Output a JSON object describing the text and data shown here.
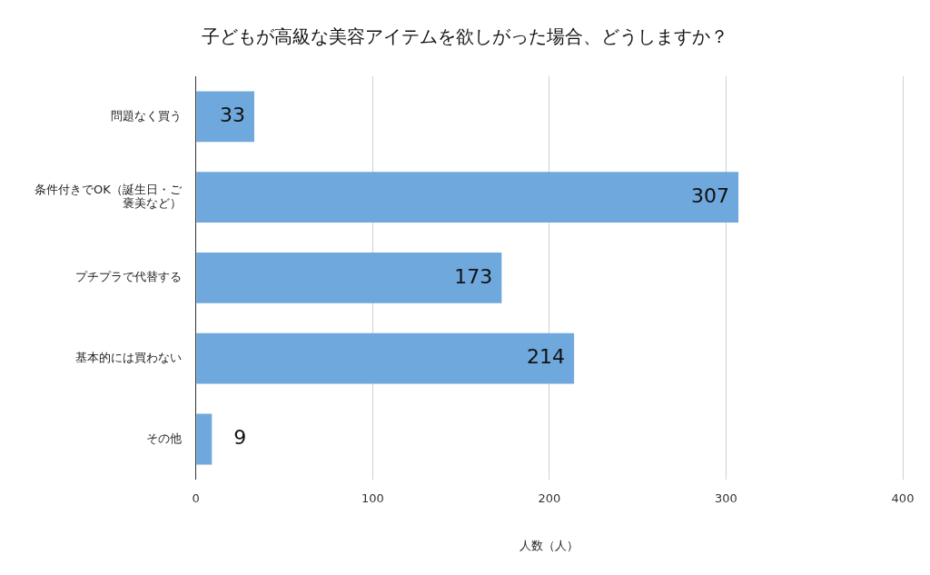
{
  "chart_data": {
    "type": "bar",
    "orientation": "horizontal",
    "title": "子どもが高級な美容アイテムを欲しがった場合、どうしますか？",
    "categories": [
      "問題なく買う",
      "条件付きでOK（誕生日・ご褒美など）",
      "プチプラで代替する",
      "基本的には買わない",
      "その他"
    ],
    "values": [
      33,
      307,
      173,
      214,
      9
    ],
    "color": "#6fa8dc",
    "xlim": [
      0,
      400
    ],
    "xticks": [
      0,
      100,
      200,
      300,
      400
    ],
    "xlabel": "人数（人）",
    "grid": "x",
    "legend": false,
    "data_labels": true
  }
}
